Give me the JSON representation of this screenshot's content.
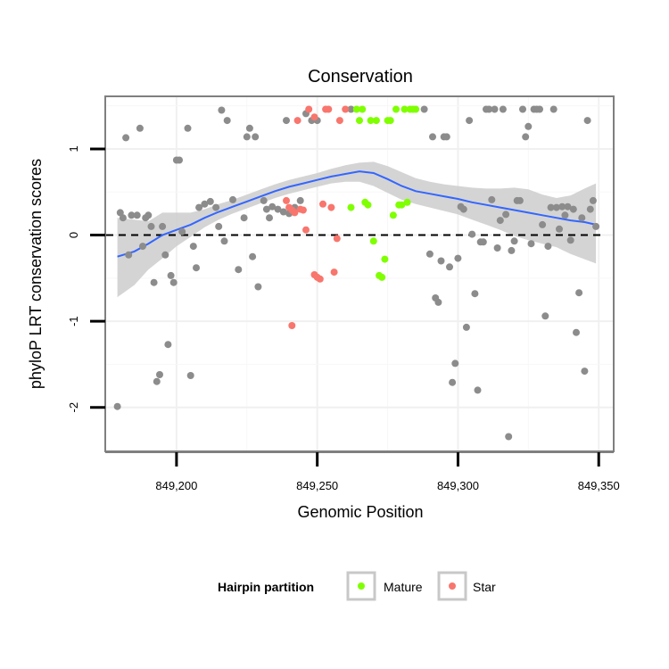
{
  "chart_data": {
    "type": "scatter",
    "title": "Conservation",
    "xlabel": "Genomic Position",
    "ylabel": "phyloP LRT conservation scores",
    "xlim": [
      849175,
      849355
    ],
    "ylim": [
      -2.5,
      1.6
    ],
    "x_ticks": [
      849200,
      849250,
      849300,
      849350
    ],
    "x_tick_labels": [
      "849,200",
      "849,250",
      "849,300",
      "849,350"
    ],
    "y_ticks": [
      -2,
      -1,
      0,
      1
    ],
    "y_tick_labels": [
      "-2",
      "-1",
      "0",
      "1"
    ],
    "grid": true,
    "reference_line": {
      "y": 0,
      "style": "dashed"
    },
    "legend": {
      "title": "Hairpin partition",
      "position": "bottom",
      "entries": [
        {
          "label": "Mature",
          "color": "#7fff00"
        },
        {
          "label": "Star",
          "color": "#f8766d"
        }
      ]
    },
    "colors": {
      "other": "#8c8c8c",
      "Mature": "#7fff00",
      "Star": "#f8766d",
      "smooth": "#3366ff",
      "band": "#cccccc"
    },
    "series": [
      {
        "category": "other",
        "points": [
          [
            849179,
            -1.99
          ],
          [
            849180,
            0.26
          ],
          [
            849181,
            0.2
          ],
          [
            849182,
            1.13
          ],
          [
            849183,
            -0.23
          ],
          [
            849184,
            0.23
          ],
          [
            849186,
            0.23
          ],
          [
            849187,
            1.24
          ],
          [
            849188,
            -0.13
          ],
          [
            849189,
            0.2
          ],
          [
            849190,
            0.23
          ],
          [
            849191,
            0.1
          ],
          [
            849192,
            -0.55
          ],
          [
            849193,
            -1.7
          ],
          [
            849194,
            -1.62
          ],
          [
            849195,
            0.1
          ],
          [
            849196,
            -0.23
          ],
          [
            849197,
            -1.27
          ],
          [
            849198,
            -0.47
          ],
          [
            849199,
            -0.55
          ],
          [
            849200,
            0.87
          ],
          [
            849201,
            0.87
          ],
          [
            849202,
            0.04
          ],
          [
            849204,
            1.24
          ],
          [
            849205,
            -1.63
          ],
          [
            849206,
            -0.13
          ],
          [
            849207,
            -0.38
          ],
          [
            849208,
            0.32
          ],
          [
            849210,
            0.36
          ],
          [
            849212,
            0.39
          ],
          [
            849214,
            0.32
          ],
          [
            849215,
            0.1
          ],
          [
            849216,
            1.45
          ],
          [
            849217,
            -0.07
          ],
          [
            849218,
            1.33
          ],
          [
            849220,
            0.41
          ],
          [
            849222,
            -0.4
          ],
          [
            849224,
            0.2
          ],
          [
            849225,
            1.14
          ],
          [
            849226,
            1.24
          ],
          [
            849227,
            -0.25
          ],
          [
            849228,
            1.14
          ],
          [
            849229,
            -0.6
          ],
          [
            849231,
            0.4
          ],
          [
            849232,
            0.3
          ],
          [
            849233,
            0.2
          ],
          [
            849234,
            0.33
          ],
          [
            849236,
            0.3
          ],
          [
            849238,
            0.27
          ],
          [
            849239,
            1.33
          ],
          [
            849240,
            0.25
          ],
          [
            849242,
            0.32
          ],
          [
            849244,
            0.4
          ],
          [
            849246,
            1.41
          ],
          [
            849248,
            1.33
          ],
          [
            849250,
            1.33
          ],
          [
            849262,
            1.46
          ],
          [
            849288,
            1.46
          ],
          [
            849290,
            -0.22
          ],
          [
            849291,
            1.14
          ],
          [
            849292,
            -0.73
          ],
          [
            849293,
            -0.78
          ],
          [
            849294,
            -0.3
          ],
          [
            849295,
            1.14
          ],
          [
            849296,
            1.14
          ],
          [
            849297,
            -0.37
          ],
          [
            849298,
            -1.71
          ],
          [
            849299,
            -1.49
          ],
          [
            849300,
            -0.27
          ],
          [
            849301,
            0.33
          ],
          [
            849302,
            0.3
          ],
          [
            849303,
            -1.07
          ],
          [
            849304,
            1.33
          ],
          [
            849305,
            0.01
          ],
          [
            849306,
            -0.68
          ],
          [
            849307,
            -1.8
          ],
          [
            849308,
            -0.08
          ],
          [
            849309,
            -0.08
          ],
          [
            849310,
            1.46
          ],
          [
            849311,
            1.46
          ],
          [
            849312,
            0.41
          ],
          [
            849313,
            1.46
          ],
          [
            849314,
            -0.15
          ],
          [
            849315,
            0.17
          ],
          [
            849316,
            1.46
          ],
          [
            849317,
            0.24
          ],
          [
            849318,
            -2.34
          ],
          [
            849319,
            -0.18
          ],
          [
            849320,
            -0.07
          ],
          [
            849321,
            0.4
          ],
          [
            849322,
            0.4
          ],
          [
            849323,
            1.46
          ],
          [
            849324,
            1.14
          ],
          [
            849325,
            1.26
          ],
          [
            849326,
            -0.1
          ],
          [
            849327,
            1.46
          ],
          [
            849328,
            1.46
          ],
          [
            849329,
            1.46
          ],
          [
            849330,
            0.12
          ],
          [
            849331,
            -0.94
          ],
          [
            849332,
            -0.13
          ],
          [
            849333,
            0.32
          ],
          [
            849334,
            1.46
          ],
          [
            849335,
            0.32
          ],
          [
            849336,
            0.07
          ],
          [
            849337,
            0.33
          ],
          [
            849338,
            0.23
          ],
          [
            849339,
            0.33
          ],
          [
            849340,
            -0.06
          ],
          [
            849341,
            0.3
          ],
          [
            849342,
            -1.13
          ],
          [
            849343,
            -0.67
          ],
          [
            849344,
            0.2
          ],
          [
            849345,
            -1.58
          ],
          [
            849346,
            1.33
          ],
          [
            849347,
            0.3
          ],
          [
            849348,
            0.4
          ],
          [
            849349,
            0.1
          ]
        ]
      },
      {
        "category": "Star",
        "points": [
          [
            849239,
            0.4
          ],
          [
            849240,
            0.32
          ],
          [
            849241,
            0.29
          ],
          [
            849241,
            -1.05
          ],
          [
            849242,
            0.26
          ],
          [
            849243,
            1.33
          ],
          [
            849244,
            0.3
          ],
          [
            849245,
            0.29
          ],
          [
            849246,
            0.06
          ],
          [
            849247,
            1.46
          ],
          [
            849249,
            -0.46
          ],
          [
            849249,
            1.37
          ],
          [
            849250,
            -0.49
          ],
          [
            849251,
            -0.51
          ],
          [
            849252,
            0.36
          ],
          [
            849253,
            1.46
          ],
          [
            849254,
            1.46
          ],
          [
            849255,
            0.32
          ],
          [
            849256,
            -0.43
          ],
          [
            849257,
            -0.04
          ],
          [
            849258,
            1.33
          ],
          [
            849260,
            1.46
          ]
        ]
      },
      {
        "category": "Mature",
        "points": [
          [
            849262,
            0.32
          ],
          [
            849264,
            1.46
          ],
          [
            849265,
            1.33
          ],
          [
            849266,
            1.46
          ],
          [
            849267,
            0.38
          ],
          [
            849268,
            0.35
          ],
          [
            849269,
            1.33
          ],
          [
            849270,
            -0.07
          ],
          [
            849271,
            1.33
          ],
          [
            849272,
            -0.47
          ],
          [
            849273,
            -0.49
          ],
          [
            849274,
            -0.28
          ],
          [
            849275,
            1.33
          ],
          [
            849276,
            1.33
          ],
          [
            849277,
            0.23
          ],
          [
            849278,
            1.46
          ],
          [
            849279,
            0.35
          ],
          [
            849280,
            0.35
          ],
          [
            849281,
            1.46
          ],
          [
            849282,
            0.38
          ],
          [
            849283,
            1.46
          ],
          [
            849284,
            1.46
          ],
          [
            849285,
            1.46
          ]
        ]
      }
    ],
    "smooth": {
      "x": [
        849179,
        849185,
        849190,
        849195,
        849200,
        849205,
        849210,
        849215,
        849220,
        849225,
        849230,
        849235,
        849240,
        849245,
        849250,
        849255,
        849260,
        849265,
        849270,
        849275,
        849280,
        849285,
        849290,
        849295,
        849300,
        849305,
        849310,
        849315,
        849320,
        849325,
        849330,
        849335,
        849340,
        849345,
        849349
      ],
      "y": [
        -0.25,
        -0.19,
        -0.1,
        0.0,
        0.06,
        0.12,
        0.2,
        0.27,
        0.33,
        0.39,
        0.45,
        0.51,
        0.56,
        0.6,
        0.64,
        0.68,
        0.71,
        0.74,
        0.72,
        0.65,
        0.57,
        0.51,
        0.48,
        0.45,
        0.42,
        0.38,
        0.35,
        0.32,
        0.29,
        0.26,
        0.23,
        0.2,
        0.17,
        0.15,
        0.12
      ],
      "lower": [
        -0.72,
        -0.58,
        -0.4,
        -0.27,
        -0.13,
        -0.02,
        0.09,
        0.18,
        0.25,
        0.31,
        0.37,
        0.43,
        0.48,
        0.52,
        0.56,
        0.6,
        0.62,
        0.62,
        0.57,
        0.49,
        0.41,
        0.36,
        0.32,
        0.28,
        0.24,
        0.18,
        0.12,
        0.06,
        -0.01,
        -0.06,
        -0.1,
        -0.14,
        -0.22,
        -0.28,
        -0.33
      ],
      "upper": [
        0.2,
        0.18,
        0.16,
        0.26,
        0.26,
        0.26,
        0.3,
        0.36,
        0.41,
        0.47,
        0.53,
        0.59,
        0.64,
        0.68,
        0.72,
        0.77,
        0.81,
        0.84,
        0.85,
        0.8,
        0.73,
        0.66,
        0.62,
        0.59,
        0.57,
        0.55,
        0.54,
        0.54,
        0.55,
        0.53,
        0.47,
        0.43,
        0.46,
        0.54,
        0.6
      ]
    }
  }
}
